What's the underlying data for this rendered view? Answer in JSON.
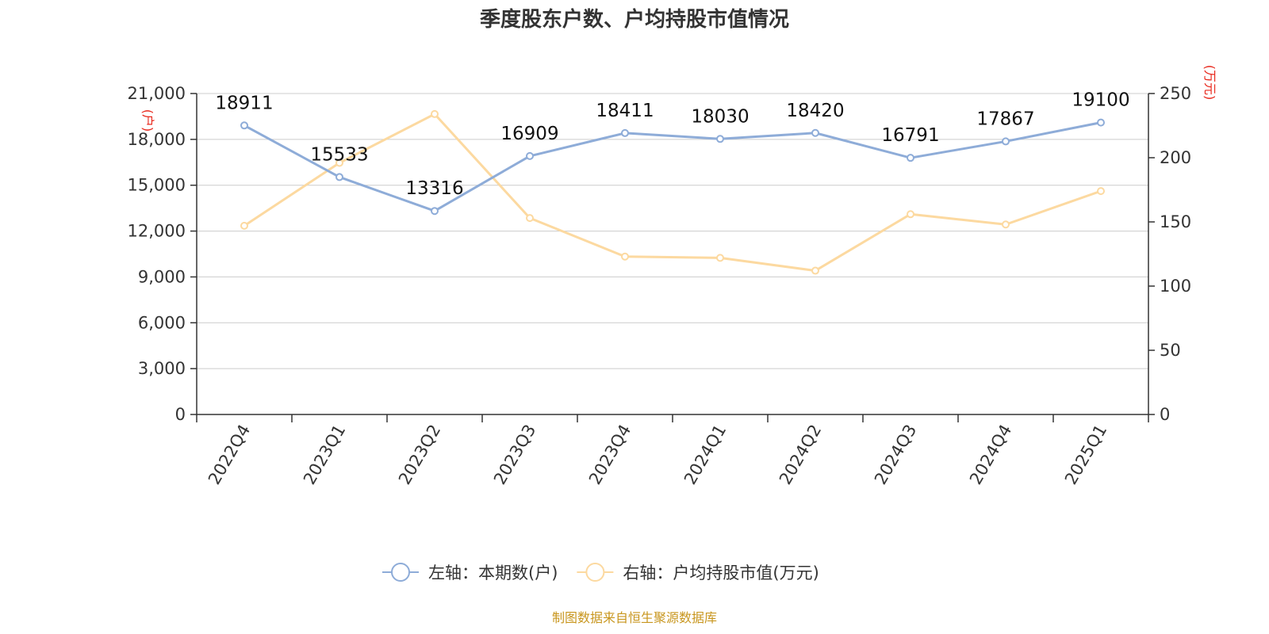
{
  "chart_data": {
    "type": "line",
    "title": "季度股东户数、户均持股市值情况",
    "categories": [
      "2022Q4",
      "2023Q1",
      "2023Q2",
      "2023Q3",
      "2023Q4",
      "2024Q1",
      "2024Q2",
      "2024Q3",
      "2024Q4",
      "2025Q1"
    ],
    "left_axis": {
      "unit": "(户)",
      "range": [
        0,
        21000
      ],
      "ticks": [
        "0",
        "3,000",
        "6,000",
        "9,000",
        "12,000",
        "15,000",
        "18,000",
        "21,000"
      ]
    },
    "right_axis": {
      "unit": "(万元)",
      "range": [
        0,
        250
      ],
      "ticks": [
        "0",
        "50",
        "100",
        "150",
        "200",
        "250"
      ]
    },
    "series": [
      {
        "name": "左轴：本期数(户)",
        "axis": "left",
        "color": "#8eacd8",
        "values": [
          18911,
          15533,
          13316,
          16909,
          18411,
          18030,
          18420,
          16791,
          17867,
          19100
        ],
        "labels": [
          "18911",
          "15533",
          "13316",
          "16909",
          "18411",
          "18030",
          "18420",
          "16791",
          "17867",
          "19100"
        ]
      },
      {
        "name": "右轴：户均持股市值(万元)",
        "axis": "right",
        "color": "#fcd9a0",
        "values": [
          147,
          196,
          234,
          153,
          123,
          122,
          112,
          156,
          148,
          174
        ]
      }
    ],
    "grid": true,
    "legend_position": "bottom-center",
    "source": "制图数据来自恒生聚源数据库"
  }
}
